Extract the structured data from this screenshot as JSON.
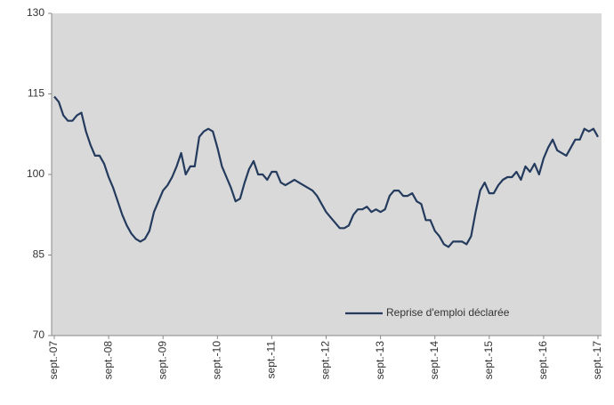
{
  "chart_data": {
    "type": "line",
    "categories": [
      "sept.-07",
      null,
      null,
      null,
      null,
      null,
      null,
      null,
      null,
      null,
      null,
      null,
      "sept.-08",
      null,
      null,
      null,
      null,
      null,
      null,
      null,
      null,
      null,
      null,
      null,
      "sept.-09",
      null,
      null,
      null,
      null,
      null,
      null,
      null,
      null,
      null,
      null,
      null,
      "sept.-10",
      null,
      null,
      null,
      null,
      null,
      null,
      null,
      null,
      null,
      null,
      null,
      "sept.-11",
      null,
      null,
      null,
      null,
      null,
      null,
      null,
      null,
      null,
      null,
      null,
      "sept.-12",
      null,
      null,
      null,
      null,
      null,
      null,
      null,
      null,
      null,
      null,
      null,
      "sept.-13",
      null,
      null,
      null,
      null,
      null,
      null,
      null,
      null,
      null,
      null,
      null,
      "sept.-14",
      null,
      null,
      null,
      null,
      null,
      null,
      null,
      null,
      null,
      null,
      null,
      "sept.-15",
      null,
      null,
      null,
      null,
      null,
      null,
      null,
      null,
      null,
      null,
      null,
      "sept.-16",
      null,
      null,
      null,
      null,
      null,
      null,
      null,
      null,
      null,
      null,
      null,
      "sept.-17"
    ],
    "series": [
      {
        "name": "Reprise d'emploi déclarée",
        "color": "#243b5e",
        "values": [
          114.5,
          113.5,
          111,
          110,
          110,
          111,
          111.5,
          108,
          105.5,
          103.5,
          103.5,
          102,
          99.5,
          97.5,
          95,
          92.5,
          90.5,
          89,
          88,
          87.5,
          88,
          89.5,
          93,
          95,
          97,
          98,
          99.5,
          101.5,
          104,
          100,
          101.5,
          101.5,
          107,
          108,
          108.5,
          108,
          105,
          101.5,
          99.5,
          97.5,
          95,
          95.5,
          98.5,
          101,
          102.5,
          100,
          100,
          99,
          100.5,
          100.5,
          98.5,
          98,
          98.5,
          99,
          98.5,
          98,
          97.5,
          97,
          96,
          94.5,
          93,
          92,
          91,
          90,
          90,
          90.5,
          92.5,
          93.5,
          93.5,
          94,
          93,
          93.5,
          93,
          93.5,
          96,
          97,
          97,
          96,
          96,
          96.5,
          95,
          94.5,
          91.5,
          91.5,
          89.5,
          88.5,
          87,
          86.5,
          87.5,
          87.5,
          87.5,
          87,
          88.5,
          93,
          97,
          98.5,
          96.5,
          96.5,
          98,
          99,
          99.5,
          99.5,
          100.5,
          99,
          101.5,
          100.5,
          102,
          100,
          103,
          105,
          106.5,
          104.5,
          104,
          103.5,
          105,
          106.5,
          106.5,
          108.5,
          108,
          108.5,
          107
        ]
      }
    ],
    "ylim": [
      70,
      130
    ],
    "yticks": [
      70,
      85,
      100,
      115,
      130
    ],
    "legend": "lower right"
  }
}
